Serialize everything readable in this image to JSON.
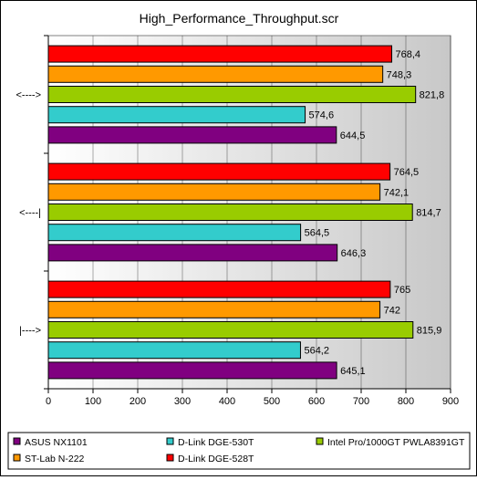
{
  "chart_data": {
    "type": "bar",
    "orientation": "horizontal",
    "title": "High_Performance_Throughput.scr",
    "xlabel": "",
    "ylabel": "",
    "xlim": [
      0,
      900
    ],
    "xticks": [
      0,
      100,
      200,
      300,
      400,
      500,
      600,
      700,
      800,
      900
    ],
    "grid": true,
    "legend_position": "bottom",
    "categories": [
      "<---->",
      "<----|",
      "|---->"
    ],
    "series": [
      {
        "name": "D-Link DGE-528T",
        "color": "#ff0000",
        "values": [
          768.4,
          764.5,
          765
        ],
        "labels": [
          "768,4",
          "764,5",
          "765"
        ]
      },
      {
        "name": "ST-Lab N-222",
        "color": "#ff9900",
        "values": [
          748.3,
          742.1,
          742
        ],
        "labels": [
          "748,3",
          "742,1",
          "742"
        ]
      },
      {
        "name": "Intel Pro/1000GT PWLA8391GT",
        "color": "#99cc00",
        "values": [
          821.8,
          814.7,
          815.9
        ],
        "labels": [
          "821,8",
          "814,7",
          "815,9"
        ]
      },
      {
        "name": "D-Link DGE-530T",
        "color": "#33cccc",
        "values": [
          574.6,
          564.5,
          564.2
        ],
        "labels": [
          "574,6",
          "564,5",
          "564,2"
        ]
      },
      {
        "name": "ASUS NX1101",
        "color": "#800080",
        "values": [
          644.5,
          646.3,
          645.1
        ],
        "labels": [
          "644,5",
          "646,3",
          "645,1"
        ]
      }
    ],
    "legend": [
      {
        "name": "ASUS NX1101",
        "color": "#800080"
      },
      {
        "name": "D-Link DGE-530T",
        "color": "#33cccc"
      },
      {
        "name": "Intel Pro/1000GT PWLA8391GT",
        "color": "#99cc00"
      },
      {
        "name": "ST-Lab N-222",
        "color": "#ff9900"
      },
      {
        "name": "D-Link DGE-528T",
        "color": "#ff0000"
      }
    ]
  }
}
